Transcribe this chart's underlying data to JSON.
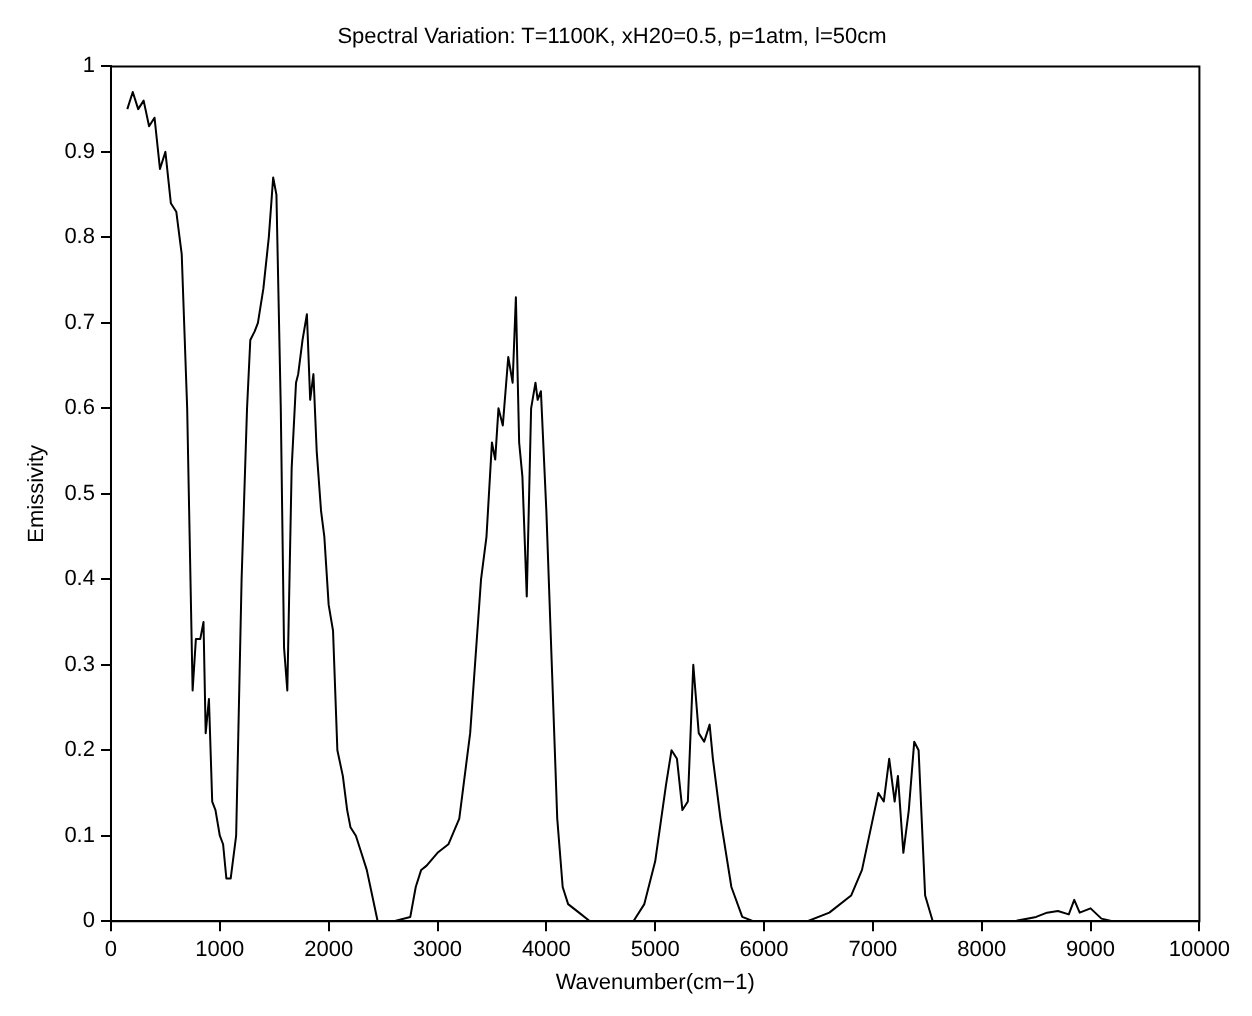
{
  "chart_data": {
    "type": "line",
    "title": "Spectral Variation: T=1100K, xH20=0.5, p=1atm, l=50cm",
    "xlabel": "Wavenumber(cm−1)",
    "ylabel": "Emissivity",
    "xlim": [
      0,
      10000
    ],
    "xticks": [
      0,
      1000,
      2000,
      3000,
      4000,
      5000,
      6000,
      7000,
      8000,
      9000,
      10000
    ],
    "ylim": [
      0,
      1
    ],
    "yticks": [
      0,
      0.1,
      0.2,
      0.3,
      0.4,
      0.5,
      0.6,
      0.7,
      0.8,
      0.9,
      1
    ],
    "grid": false,
    "legend": false,
    "marker": "none",
    "line_style": "solid",
    "series": [
      {
        "color": "#000000",
        "x": [
          150,
          200,
          250,
          300,
          350,
          400,
          450,
          500,
          550,
          600,
          650,
          700,
          750,
          780,
          820,
          850,
          870,
          900,
          930,
          960,
          1000,
          1030,
          1060,
          1100,
          1150,
          1200,
          1250,
          1280,
          1320,
          1350,
          1400,
          1450,
          1490,
          1520,
          1560,
          1590,
          1620,
          1660,
          1700,
          1720,
          1760,
          1800,
          1830,
          1860,
          1890,
          1930,
          1960,
          2000,
          2040,
          2080,
          2130,
          2170,
          2200,
          2250,
          2300,
          2350,
          2400,
          2450,
          2600,
          2750,
          2800,
          2850,
          2900,
          3000,
          3100,
          3200,
          3300,
          3400,
          3450,
          3500,
          3530,
          3560,
          3600,
          3650,
          3690,
          3720,
          3750,
          3780,
          3820,
          3860,
          3900,
          3920,
          3950,
          4000,
          4050,
          4100,
          4150,
          4200,
          4300,
          4400,
          4800,
          4900,
          5000,
          5100,
          5150,
          5200,
          5250,
          5300,
          5350,
          5400,
          5450,
          5500,
          5530,
          5600,
          5700,
          5800,
          5900,
          6400,
          6600,
          6800,
          6900,
          7000,
          7050,
          7100,
          7150,
          7200,
          7230,
          7280,
          7330,
          7380,
          7420,
          7480,
          7550,
          8000,
          8300,
          8500,
          8600,
          8700,
          8800,
          8850,
          8900,
          9000,
          9100,
          9200
        ],
        "values": [
          0.95,
          0.97,
          0.95,
          0.96,
          0.93,
          0.94,
          0.88,
          0.9,
          0.84,
          0.83,
          0.78,
          0.6,
          0.27,
          0.33,
          0.33,
          0.35,
          0.22,
          0.26,
          0.14,
          0.13,
          0.1,
          0.09,
          0.05,
          0.05,
          0.1,
          0.4,
          0.6,
          0.68,
          0.69,
          0.7,
          0.74,
          0.8,
          0.87,
          0.85,
          0.6,
          0.32,
          0.27,
          0.53,
          0.63,
          0.64,
          0.68,
          0.71,
          0.61,
          0.64,
          0.55,
          0.48,
          0.45,
          0.37,
          0.34,
          0.2,
          0.17,
          0.13,
          0.11,
          0.1,
          0.08,
          0.06,
          0.03,
          0,
          0,
          0.005,
          0.04,
          0.06,
          0.065,
          0.08,
          0.09,
          0.12,
          0.22,
          0.4,
          0.45,
          0.56,
          0.54,
          0.6,
          0.58,
          0.66,
          0.63,
          0.73,
          0.56,
          0.52,
          0.38,
          0.6,
          0.63,
          0.61,
          0.62,
          0.48,
          0.3,
          0.12,
          0.04,
          0.02,
          0.01,
          0,
          0,
          0.02,
          0.07,
          0.16,
          0.2,
          0.19,
          0.13,
          0.14,
          0.3,
          0.22,
          0.21,
          0.23,
          0.19,
          0.12,
          0.04,
          0.005,
          0,
          0,
          0.01,
          0.03,
          0.06,
          0.12,
          0.15,
          0.14,
          0.19,
          0.14,
          0.17,
          0.08,
          0.13,
          0.21,
          0.2,
          0.03,
          0,
          0,
          0,
          0.005,
          0.01,
          0.012,
          0.008,
          0.025,
          0.01,
          0.015,
          0.003,
          0
        ]
      }
    ]
  }
}
